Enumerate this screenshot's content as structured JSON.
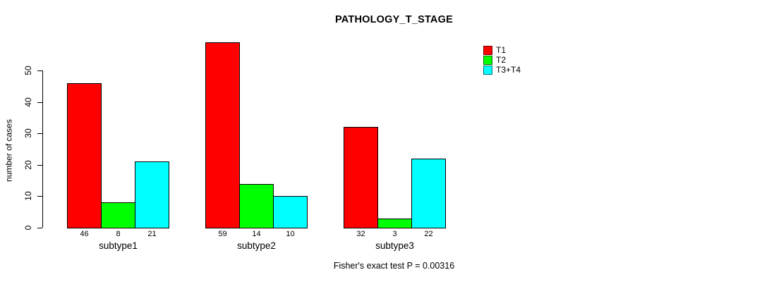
{
  "chart_data": {
    "type": "bar",
    "title": "PATHOLOGY_T_STAGE",
    "ylabel": "number of cases",
    "xlabel": "",
    "categories": [
      "subtype1",
      "subtype2",
      "subtype3"
    ],
    "series": [
      {
        "name": "T1",
        "color": "#ff0000",
        "values": [
          46,
          59,
          32
        ]
      },
      {
        "name": "T2",
        "color": "#00ff00",
        "values": [
          8,
          14,
          3
        ]
      },
      {
        "name": "T3+T4",
        "color": "#00ffff",
        "values": [
          21,
          10,
          22
        ]
      }
    ],
    "bar_value_labels": [
      [
        "46",
        "8",
        "21"
      ],
      [
        "59",
        "14",
        "10"
      ],
      [
        "32",
        "3",
        "22"
      ]
    ],
    "yticks": [
      0,
      10,
      20,
      30,
      40,
      50
    ],
    "ylim": [
      0,
      59
    ],
    "grid": false,
    "legend_position": "top-right",
    "legend_entries": [
      "T1",
      "T2",
      "T3+T4"
    ],
    "annotation": "Fisher's exact test P = 0.00316",
    "colors": {
      "bar_border": "#000000",
      "text": "#000000",
      "background": "#ffffff"
    }
  }
}
